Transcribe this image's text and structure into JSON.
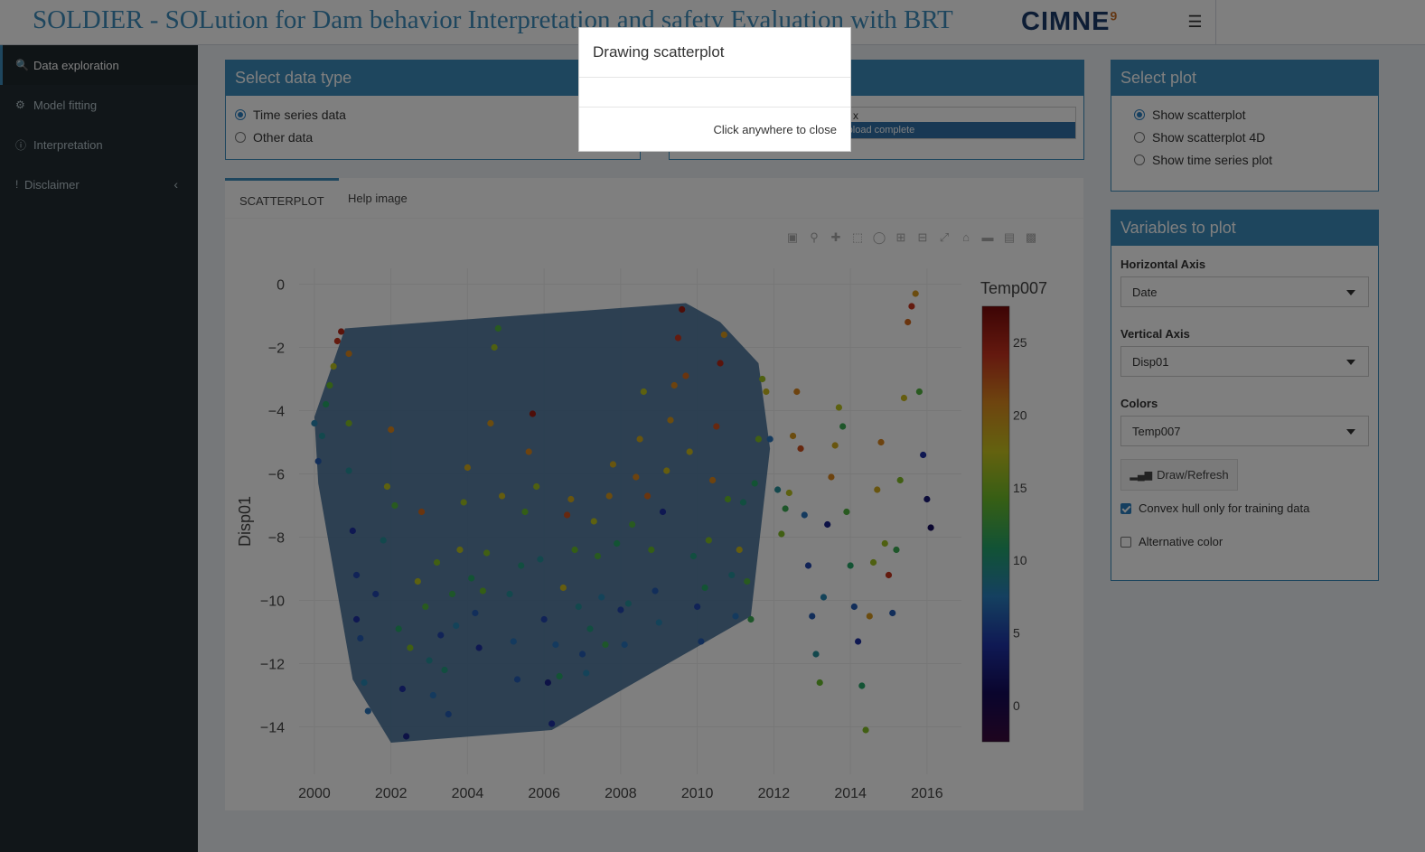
{
  "header": {
    "title": "SOLDIER - SOLution for Dam behavior Interpretation and safety Evaluation with BRT",
    "logo": "CIMNE",
    "logo_mark": "9",
    "menu_icon": "hamburger-icon"
  },
  "sidebar": {
    "items": [
      {
        "label": "Data exploration",
        "icon": "search-icon"
      },
      {
        "label": "Model fitting",
        "icon": "gear-icon"
      },
      {
        "label": "Interpretation",
        "icon": "info-icon"
      },
      {
        "label": "Disclaimer",
        "icon": "exclamation-icon"
      }
    ]
  },
  "data_type": {
    "title": "Select data type",
    "options": [
      "Time series data",
      "Other data"
    ],
    "selected": 0
  },
  "upload": {
    "filename_fragment": "x",
    "progress_text": "Upload complete",
    "progress": 1.0
  },
  "tabs": {
    "items": [
      "SCATTERPLOT",
      "Help image"
    ],
    "active": 0
  },
  "modebar": [
    "camera-icon",
    "zoom-icon",
    "pan-icon",
    "box-select-icon",
    "lasso-icon",
    "zoom-in-icon",
    "zoom-out-icon",
    "autoscale-icon",
    "home-icon",
    "hover-closest-icon",
    "hover-compare-icon",
    "plotly-logo-icon"
  ],
  "select_plot": {
    "title": "Select plot",
    "options": [
      "Show scatterplot",
      "Show scatterplot 4D",
      "Show time series plot"
    ],
    "selected": 0
  },
  "variables": {
    "title": "Variables to plot",
    "horizontal_label": "Horizontal Axis",
    "horizontal_value": "Date",
    "vertical_label": "Vertical Axis",
    "vertical_value": "Disp01",
    "colors_label": "Colors",
    "colors_value": "Temp007",
    "draw_button": "Draw/Refresh",
    "convex_hull_label": "Convex hull only for training data",
    "convex_hull_checked": true,
    "alt_color_label": "Alternative color",
    "alt_color_checked": false
  },
  "modal": {
    "title": "Drawing scatterplot",
    "footer": "Click anywhere to close"
  },
  "chart_data": {
    "type": "scatter",
    "xlabel": "Date",
    "ylabel": "Disp01",
    "colorbar_title": "Temp007",
    "xlim": [
      1999.6,
      2016.9
    ],
    "ylim": [
      -15.5,
      0.5
    ],
    "x_ticks": [
      2000,
      2002,
      2004,
      2006,
      2008,
      2010,
      2012,
      2014,
      2016
    ],
    "y_ticks": [
      0,
      -2,
      -4,
      -6,
      -8,
      -10,
      -12,
      -14
    ],
    "color_ticks": [
      0,
      5,
      10,
      15,
      20,
      25
    ],
    "color_range": [
      -2.5,
      27.5
    ],
    "colorscale": [
      "#3c0a3d",
      "#140a5a",
      "#1f33a8",
      "#2a80c0",
      "#23a56b",
      "#6cbd2a",
      "#c8c41e",
      "#dc8a1e",
      "#c8321e",
      "#7a0a0a"
    ],
    "grid": true,
    "hull": [
      [
        2000.0,
        -4.2
      ],
      [
        2000.1,
        -6.3
      ],
      [
        2001.0,
        -12.5
      ],
      [
        2002.0,
        -14.5
      ],
      [
        2006.2,
        -14.1
      ],
      [
        2011.4,
        -10.5
      ],
      [
        2011.9,
        -5.2
      ],
      [
        2011.6,
        -2.5
      ],
      [
        2010.6,
        -1.2
      ],
      [
        2009.7,
        -0.6
      ],
      [
        2000.8,
        -1.4
      ]
    ],
    "hull_color": "#3d6b94",
    "points": [
      [
        2000.0,
        -4.4,
        8
      ],
      [
        2000.1,
        -5.6,
        6
      ],
      [
        2000.2,
        -4.8,
        9
      ],
      [
        2000.3,
        -3.8,
        11
      ],
      [
        2000.4,
        -3.2,
        14
      ],
      [
        2000.5,
        -2.6,
        17
      ],
      [
        2000.6,
        -1.8,
        24
      ],
      [
        2000.7,
        -1.5,
        25
      ],
      [
        2000.9,
        -2.2,
        21
      ],
      [
        2000.9,
        -4.4,
        15
      ],
      [
        2000.9,
        -5.9,
        9
      ],
      [
        2001.0,
        -7.8,
        4
      ],
      [
        2001.1,
        -9.2,
        5
      ],
      [
        2001.1,
        -10.6,
        4
      ],
      [
        2001.2,
        -11.2,
        6
      ],
      [
        2001.3,
        -12.6,
        8
      ],
      [
        2001.4,
        -13.5,
        7
      ],
      [
        2001.6,
        -9.8,
        5
      ],
      [
        2001.8,
        -8.1,
        9
      ],
      [
        2001.9,
        -6.4,
        17
      ],
      [
        2002.0,
        -4.6,
        21
      ],
      [
        2002.1,
        -7.0,
        13
      ],
      [
        2002.2,
        -10.9,
        11
      ],
      [
        2002.3,
        -12.8,
        4
      ],
      [
        2002.4,
        -14.3,
        3
      ],
      [
        2002.5,
        -11.5,
        15
      ],
      [
        2002.7,
        -9.4,
        17
      ],
      [
        2002.8,
        -7.2,
        22
      ],
      [
        2002.9,
        -10.2,
        13
      ],
      [
        2003.0,
        -11.9,
        9
      ],
      [
        2003.1,
        -13.0,
        7
      ],
      [
        2003.2,
        -8.8,
        15
      ],
      [
        2003.3,
        -11.1,
        5
      ],
      [
        2003.4,
        -12.2,
        10
      ],
      [
        2003.5,
        -13.6,
        6
      ],
      [
        2003.6,
        -9.8,
        12
      ],
      [
        2003.7,
        -10.8,
        8
      ],
      [
        2003.8,
        -8.4,
        17
      ],
      [
        2003.9,
        -6.9,
        16
      ],
      [
        2004.0,
        -5.8,
        19
      ],
      [
        2004.1,
        -9.3,
        11
      ],
      [
        2004.2,
        -10.4,
        6
      ],
      [
        2004.3,
        -11.5,
        4
      ],
      [
        2004.4,
        -9.7,
        14
      ],
      [
        2004.5,
        -8.5,
        15
      ],
      [
        2004.6,
        -4.4,
        20
      ],
      [
        2004.7,
        -2.0,
        16
      ],
      [
        2004.8,
        -1.4,
        13
      ],
      [
        2004.9,
        -6.7,
        18
      ],
      [
        2005.1,
        -9.8,
        9
      ],
      [
        2005.2,
        -11.3,
        7
      ],
      [
        2005.3,
        -12.5,
        6
      ],
      [
        2005.4,
        -8.9,
        10
      ],
      [
        2005.5,
        -7.2,
        14
      ],
      [
        2005.6,
        -5.3,
        21
      ],
      [
        2005.7,
        -4.1,
        26
      ],
      [
        2005.8,
        -6.4,
        16
      ],
      [
        2005.9,
        -8.7,
        9
      ],
      [
        2006.0,
        -10.6,
        5
      ],
      [
        2006.1,
        -12.6,
        3
      ],
      [
        2006.2,
        -13.9,
        4
      ],
      [
        2006.3,
        -11.4,
        7
      ],
      [
        2006.4,
        -12.4,
        11
      ],
      [
        2006.5,
        -9.6,
        18
      ],
      [
        2006.6,
        -7.3,
        23
      ],
      [
        2006.7,
        -6.8,
        19
      ],
      [
        2006.8,
        -8.4,
        14
      ],
      [
        2006.9,
        -10.2,
        9
      ],
      [
        2007.0,
        -11.7,
        6
      ],
      [
        2007.1,
        -12.3,
        8
      ],
      [
        2007.2,
        -10.9,
        10
      ],
      [
        2007.3,
        -7.5,
        17
      ],
      [
        2007.4,
        -8.6,
        13
      ],
      [
        2007.5,
        -9.9,
        8
      ],
      [
        2007.6,
        -11.4,
        12
      ],
      [
        2007.7,
        -6.7,
        20
      ],
      [
        2007.8,
        -5.7,
        19
      ],
      [
        2007.9,
        -8.2,
        11
      ],
      [
        2008.0,
        -10.3,
        5
      ],
      [
        2008.1,
        -11.4,
        7
      ],
      [
        2008.2,
        -10.1,
        9
      ],
      [
        2008.3,
        -7.6,
        13
      ],
      [
        2008.4,
        -6.1,
        21
      ],
      [
        2008.5,
        -4.9,
        19
      ],
      [
        2008.6,
        -3.4,
        17
      ],
      [
        2008.7,
        -6.7,
        22
      ],
      [
        2008.8,
        -8.4,
        14
      ],
      [
        2008.9,
        -9.7,
        6
      ],
      [
        2009.0,
        -10.7,
        8
      ],
      [
        2009.1,
        -7.2,
        4
      ],
      [
        2009.2,
        -5.9,
        18
      ],
      [
        2009.3,
        -4.3,
        20
      ],
      [
        2009.4,
        -3.2,
        21
      ],
      [
        2009.5,
        -1.7,
        24
      ],
      [
        2009.6,
        -0.8,
        26
      ],
      [
        2009.7,
        -2.9,
        22
      ],
      [
        2009.8,
        -5.3,
        18
      ],
      [
        2009.9,
        -8.6,
        10
      ],
      [
        2010.0,
        -10.2,
        5
      ],
      [
        2010.1,
        -11.3,
        6
      ],
      [
        2010.2,
        -9.6,
        11
      ],
      [
        2010.3,
        -8.1,
        15
      ],
      [
        2010.4,
        -6.2,
        21
      ],
      [
        2010.5,
        -4.5,
        23
      ],
      [
        2010.6,
        -2.5,
        25
      ],
      [
        2010.7,
        -1.6,
        20
      ],
      [
        2010.8,
        -6.8,
        14
      ],
      [
        2010.9,
        -9.2,
        9
      ],
      [
        2011.0,
        -10.5,
        7
      ],
      [
        2011.1,
        -8.4,
        18
      ],
      [
        2011.2,
        -6.9,
        10
      ],
      [
        2011.3,
        -9.4,
        13
      ],
      [
        2011.4,
        -10.6,
        12
      ],
      [
        2011.5,
        -6.3,
        11
      ],
      [
        2011.6,
        -4.9,
        15
      ],
      [
        2011.7,
        -3.0,
        16
      ],
      [
        2011.8,
        -3.4,
        18
      ],
      [
        2011.9,
        -4.9,
        7
      ],
      [
        2012.1,
        -6.5,
        9
      ],
      [
        2012.2,
        -7.9,
        15
      ],
      [
        2012.3,
        -7.1,
        12
      ],
      [
        2012.4,
        -6.6,
        17
      ],
      [
        2012.5,
        -4.8,
        20
      ],
      [
        2012.6,
        -3.4,
        21
      ],
      [
        2012.7,
        -5.2,
        23
      ],
      [
        2012.8,
        -7.3,
        7
      ],
      [
        2012.9,
        -8.9,
        5
      ],
      [
        2013.0,
        -10.5,
        6
      ],
      [
        2013.1,
        -11.7,
        9
      ],
      [
        2013.2,
        -12.6,
        14
      ],
      [
        2013.3,
        -9.9,
        8
      ],
      [
        2013.4,
        -7.6,
        3
      ],
      [
        2013.5,
        -6.1,
        21
      ],
      [
        2013.6,
        -5.1,
        19
      ],
      [
        2013.7,
        -3.9,
        17
      ],
      [
        2013.8,
        -4.5,
        12
      ],
      [
        2013.9,
        -7.2,
        13
      ],
      [
        2014.0,
        -8.9,
        11
      ],
      [
        2014.1,
        -10.2,
        6
      ],
      [
        2014.2,
        -11.3,
        4
      ],
      [
        2014.3,
        -12.7,
        11
      ],
      [
        2014.4,
        -14.1,
        15
      ],
      [
        2014.5,
        -10.5,
        20
      ],
      [
        2014.6,
        -8.8,
        16
      ],
      [
        2014.7,
        -6.5,
        19
      ],
      [
        2014.8,
        -5.0,
        21
      ],
      [
        2014.9,
        -8.2,
        16
      ],
      [
        2015.0,
        -9.2,
        24
      ],
      [
        2015.1,
        -10.4,
        6
      ],
      [
        2015.2,
        -8.4,
        12
      ],
      [
        2015.3,
        -6.2,
        15
      ],
      [
        2015.4,
        -3.6,
        18
      ],
      [
        2015.5,
        -1.2,
        22
      ],
      [
        2015.6,
        -0.7,
        24
      ],
      [
        2015.7,
        -0.3,
        20
      ],
      [
        2015.8,
        -3.4,
        13
      ],
      [
        2015.9,
        -5.4,
        4
      ],
      [
        2016.0,
        -6.8,
        2
      ],
      [
        2016.1,
        -7.7,
        1
      ]
    ]
  }
}
